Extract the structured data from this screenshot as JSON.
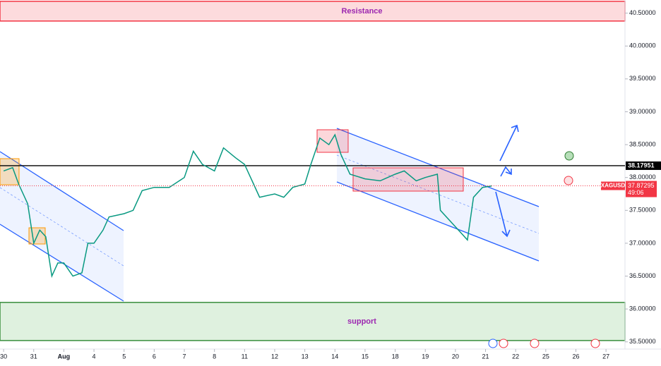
{
  "chart_data": {
    "type": "line",
    "symbol": "XAGUSD",
    "countdown": "49:06",
    "resistance": {
      "label": "Resistance",
      "low": 40.38,
      "high": 40.68
    },
    "support": {
      "label": "support",
      "low": 35.52,
      "high": 36.1
    },
    "level": {
      "value": 38.17951,
      "label": "38.17951"
    },
    "price": {
      "value": 37.87295,
      "label": "37.87295"
    },
    "xlim": [
      -0.12,
      20.63
    ],
    "ylim": [
      35.39,
      40.7
    ],
    "xticks": [
      {
        "value": 0,
        "label": "30"
      },
      {
        "value": 1,
        "label": "31"
      },
      {
        "value": 2,
        "label": "Aug"
      },
      {
        "value": 3,
        "label": "4"
      },
      {
        "value": 4,
        "label": "5"
      },
      {
        "value": 5,
        "label": "6"
      },
      {
        "value": 6,
        "label": "7"
      },
      {
        "value": 7,
        "label": "8"
      },
      {
        "value": 8,
        "label": "11"
      },
      {
        "value": 9,
        "label": "12"
      },
      {
        "value": 10,
        "label": "13"
      },
      {
        "value": 11,
        "label": "14"
      },
      {
        "value": 12,
        "label": "15"
      },
      {
        "value": 13,
        "label": "18"
      },
      {
        "value": 14,
        "label": "19"
      },
      {
        "value": 15,
        "label": "20"
      },
      {
        "value": 16,
        "label": "21"
      },
      {
        "value": 17,
        "label": "22"
      },
      {
        "value": 18,
        "label": "25"
      },
      {
        "value": 19,
        "label": "26"
      },
      {
        "value": 20,
        "label": "27"
      }
    ],
    "yticks": [
      {
        "value": 35.5,
        "label": "35.50000"
      },
      {
        "value": 36,
        "label": "36.00000"
      },
      {
        "value": 36.5,
        "label": "36.50000"
      },
      {
        "value": 37,
        "label": "37.00000"
      },
      {
        "value": 37.5,
        "label": "37.50000"
      },
      {
        "value": 38,
        "label": "38.00000"
      },
      {
        "value": 38.5,
        "label": "38.50000"
      },
      {
        "value": 39,
        "label": "39.00000"
      },
      {
        "value": 39.5,
        "label": "39.50000"
      },
      {
        "value": 40,
        "label": "40.00000"
      },
      {
        "value": 40.5,
        "label": "40.50000"
      }
    ],
    "series": [
      {
        "color": "#089981",
        "x": [
          0,
          0.3,
          0.5,
          0.8,
          1.0,
          1.2,
          1.4,
          1.6,
          1.8,
          2.0,
          2.3,
          2.6,
          2.8,
          3.0,
          3.3,
          3.5,
          4.0,
          4.3,
          4.6,
          5.0,
          5.5,
          6.0,
          6.3,
          6.6,
          7.0,
          7.3,
          7.7,
          8.0,
          8.3,
          8.5,
          9.0,
          9.3,
          9.6,
          10.0,
          10.2,
          10.5,
          10.8,
          11.0,
          11.2,
          11.5,
          12.0,
          12.5,
          13.0,
          13.3,
          13.7,
          14.0,
          14.4,
          14.5,
          14.9,
          15.2,
          15.4,
          15.6,
          15.9,
          16.2
        ],
        "values": [
          38.1,
          38.15,
          37.9,
          37.6,
          37.0,
          37.2,
          37.1,
          36.5,
          36.7,
          36.7,
          36.5,
          36.55,
          37.0,
          37.0,
          37.2,
          37.4,
          37.45,
          37.5,
          37.8,
          37.85,
          37.85,
          38.0,
          38.4,
          38.2,
          38.1,
          38.45,
          38.3,
          38.2,
          37.9,
          37.7,
          37.75,
          37.7,
          37.85,
          37.9,
          38.2,
          38.6,
          38.5,
          38.65,
          38.35,
          38.05,
          37.98,
          37.95,
          38.05,
          38.1,
          37.95,
          38.0,
          38.05,
          37.5,
          37.3,
          37.15,
          37.05,
          37.7,
          37.85,
          37.87
        ]
      }
    ]
  }
}
